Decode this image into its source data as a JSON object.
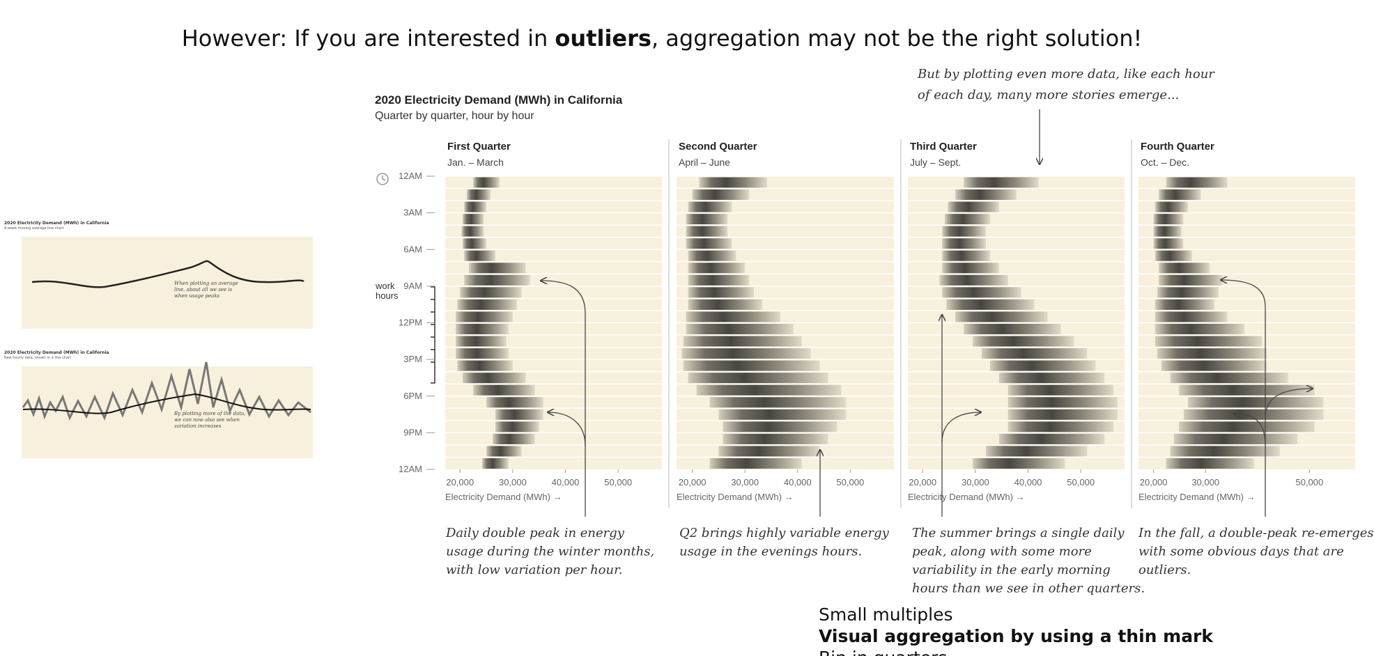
{
  "title_parts": [
    "However: If you are interested in ",
    "outliers",
    ", aggregation may not be the right solution!"
  ],
  "thumbnails": [
    {
      "title": "2020 Electricity Demand (MWh) in California",
      "subtitle": "4-week moving average line chart",
      "annotation": [
        "When plotting an average",
        "line, about all we see is",
        "when usage peaks"
      ]
    },
    {
      "title": "2020 Electricity Demand (MWh) in California",
      "subtitle": "Raw hourly data, shown in a line chart",
      "annotation": [
        "By plotting more of the data,",
        "we can now also see when",
        "variation increases"
      ]
    }
  ],
  "chart_data": {
    "type": "strip",
    "title": "2020 Electricity Demand (MWh) in California",
    "subtitle": "Quarter by quarter, hour by hour",
    "y_annotation": [
      "work",
      "hours"
    ],
    "xlabel": "Electricity Demand (MWh) →",
    "ylim": [
      0,
      24
    ],
    "yticks": [
      {
        "value": 0,
        "label": "12AM"
      },
      {
        "value": 3,
        "label": "3AM"
      },
      {
        "value": 6,
        "label": "6AM"
      },
      {
        "value": 9,
        "label": "9AM"
      },
      {
        "value": 12,
        "label": "12PM"
      },
      {
        "value": 15,
        "label": "3PM"
      },
      {
        "value": 18,
        "label": "6PM"
      },
      {
        "value": 21,
        "label": "9PM"
      },
      {
        "value": 24,
        "label": "12AM"
      }
    ],
    "panels": [
      {
        "title": "First Quarter",
        "subtitle": "Jan. – March",
        "xlim": [
          17200,
          58300
        ],
        "xticks": [
          {
            "value": 20000,
            "label": "20,000"
          },
          {
            "value": 30000,
            "label": "30,000"
          },
          {
            "value": 40000,
            "label": "40,000"
          },
          {
            "value": 50000,
            "label": "50,000"
          }
        ],
        "ranges": [
          [
            22500,
            27500
          ],
          [
            21300,
            25800
          ],
          [
            20800,
            25000
          ],
          [
            20500,
            24500
          ],
          [
            20300,
            24500
          ],
          [
            20500,
            25000
          ],
          [
            20800,
            26700
          ],
          [
            21700,
            32500
          ],
          [
            20800,
            33300
          ],
          [
            20000,
            31700
          ],
          [
            19500,
            30800
          ],
          [
            19200,
            30000
          ],
          [
            19200,
            29200
          ],
          [
            19200,
            28800
          ],
          [
            19200,
            29200
          ],
          [
            19500,
            30000
          ],
          [
            20500,
            32500
          ],
          [
            22500,
            34200
          ],
          [
            25000,
            35800
          ],
          [
            26700,
            35800
          ],
          [
            26700,
            35000
          ],
          [
            26200,
            34200
          ],
          [
            25000,
            31700
          ],
          [
            24200,
            29200
          ]
        ]
      },
      {
        "title": "Second Quarter",
        "subtitle": "April – June",
        "xlim": [
          17000,
          58300
        ],
        "xticks": [
          {
            "value": 20000,
            "label": "20,000"
          },
          {
            "value": 30000,
            "label": "30,000"
          },
          {
            "value": 40000,
            "label": "40,000"
          },
          {
            "value": 50000,
            "label": "50,000"
          }
        ],
        "ranges": [
          [
            21300,
            34200
          ],
          [
            20000,
            30800
          ],
          [
            19200,
            27500
          ],
          [
            18800,
            26700
          ],
          [
            18800,
            26700
          ],
          [
            18800,
            27500
          ],
          [
            19200,
            28300
          ],
          [
            19200,
            30000
          ],
          [
            19200,
            30800
          ],
          [
            19200,
            31700
          ],
          [
            19200,
            33300
          ],
          [
            18800,
            36700
          ],
          [
            18800,
            39200
          ],
          [
            18300,
            40800
          ],
          [
            18000,
            42500
          ],
          [
            18300,
            44200
          ],
          [
            19200,
            45800
          ],
          [
            20800,
            48300
          ],
          [
            23300,
            49200
          ],
          [
            25000,
            49200
          ],
          [
            25800,
            47500
          ],
          [
            25800,
            45800
          ],
          [
            25000,
            44200
          ],
          [
            23300,
            40800
          ]
        ]
      },
      {
        "title": "Third Quarter",
        "subtitle": "July – Sept.",
        "xlim": [
          17200,
          58300
        ],
        "xticks": [
          {
            "value": 20000,
            "label": "20,000"
          },
          {
            "value": 30000,
            "label": "30,000"
          },
          {
            "value": 40000,
            "label": "40,000"
          },
          {
            "value": 50000,
            "label": "50,000"
          }
        ],
        "ranges": [
          [
            27800,
            42000
          ],
          [
            26200,
            37800
          ],
          [
            24800,
            34500
          ],
          [
            24200,
            32800
          ],
          [
            23700,
            32000
          ],
          [
            23700,
            32000
          ],
          [
            23700,
            32800
          ],
          [
            23700,
            34500
          ],
          [
            23200,
            36200
          ],
          [
            23700,
            38700
          ],
          [
            24500,
            41200
          ],
          [
            26200,
            43700
          ],
          [
            27800,
            46200
          ],
          [
            29500,
            48700
          ],
          [
            31200,
            51200
          ],
          [
            32800,
            52800
          ],
          [
            34500,
            54500
          ],
          [
            36200,
            56200
          ],
          [
            36200,
            57000
          ],
          [
            36200,
            57000
          ],
          [
            36200,
            56200
          ],
          [
            34500,
            54500
          ],
          [
            32000,
            51200
          ],
          [
            29500,
            47000
          ]
        ]
      },
      {
        "title": "Fourth Quarter",
        "subtitle": "Oct. – Dec.",
        "xlim": [
          17100,
          58800
        ],
        "xticks": [
          {
            "value": 20000,
            "label": "20,000"
          },
          {
            "value": 30000,
            "label": "30,000"
          },
          {
            "value": 50000,
            "label": "50,000"
          }
        ],
        "ranges": [
          [
            22400,
            34200
          ],
          [
            21000,
            29100
          ],
          [
            20300,
            26600
          ],
          [
            20000,
            25700
          ],
          [
            20000,
            25400
          ],
          [
            20000,
            25700
          ],
          [
            20300,
            27400
          ],
          [
            21000,
            30800
          ],
          [
            21000,
            33300
          ],
          [
            20700,
            32500
          ],
          [
            20300,
            31700
          ],
          [
            20300,
            34200
          ],
          [
            20300,
            37500
          ],
          [
            20300,
            40900
          ],
          [
            20700,
            41800
          ],
          [
            21500,
            41800
          ],
          [
            23200,
            45900
          ],
          [
            24900,
            51000
          ],
          [
            26600,
            52700
          ],
          [
            25800,
            52700
          ],
          [
            24900,
            51000
          ],
          [
            23900,
            47700
          ],
          [
            23200,
            44300
          ],
          [
            22400,
            39300
          ]
        ]
      }
    ]
  },
  "annotations": {
    "top": [
      "But by plotting even more data, like each hour",
      "of each day, many more stories emerge..."
    ],
    "bottom": [
      [
        "Daily double peak in energy",
        "usage during the winter months,",
        "with low variation per hour."
      ],
      [
        "Q2 brings highly variable energy",
        "usage in the evenings hours."
      ],
      [
        "The summer brings a single daily",
        "peak, along with some more",
        "variability in the early morning",
        "hours than we see in other quarters."
      ],
      [
        "In the fall, a double-peak re-emerges",
        "with some obvious days that are",
        "outliers."
      ]
    ]
  },
  "bullets": [
    "Small multiples",
    "Visual aggregation by using a thin mark",
    "Bin in quarters"
  ]
}
